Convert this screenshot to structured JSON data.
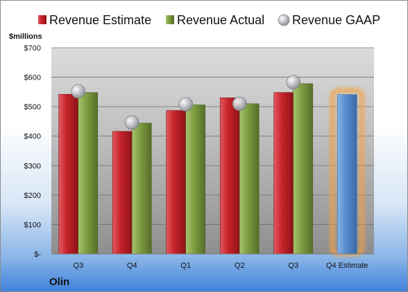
{
  "company": "Olin",
  "colors": {
    "estimate": "#c8242c",
    "actual": "#7f9f42",
    "gaap": "#a8aab0",
    "future_estimate": "#5b8fd0",
    "highlight": "#f5a040"
  },
  "chart_data": {
    "type": "bar",
    "title": "",
    "xlabel": "",
    "ylabel": "$millions",
    "ylim": [
      0,
      700
    ],
    "y_ticks": [
      {
        "value": 0,
        "label": "$-"
      },
      {
        "value": 100,
        "label": "$100"
      },
      {
        "value": 200,
        "label": "$200"
      },
      {
        "value": 300,
        "label": "$300"
      },
      {
        "value": 400,
        "label": "$400"
      },
      {
        "value": 500,
        "label": "$500"
      },
      {
        "value": 600,
        "label": "$600"
      },
      {
        "value": 700,
        "label": "$700"
      }
    ],
    "categories": [
      "Q3",
      "Q4",
      "Q1",
      "Q2",
      "Q3",
      "Q4 Estimate"
    ],
    "legend_position": "top",
    "grid": true,
    "series": [
      {
        "name": "Revenue Estimate",
        "kind": "bar",
        "values": [
          542,
          416,
          487,
          530,
          548,
          541
        ]
      },
      {
        "name": "Revenue Actual",
        "kind": "bar",
        "values": [
          548,
          444,
          506,
          510,
          578,
          null
        ]
      },
      {
        "name": "Revenue GAAP",
        "kind": "marker",
        "values": [
          552,
          446,
          508,
          510,
          583,
          null
        ]
      }
    ]
  }
}
